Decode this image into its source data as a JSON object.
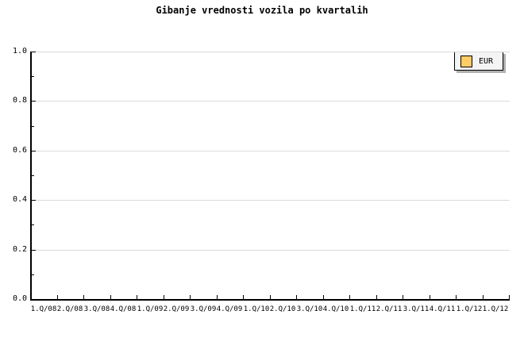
{
  "title": "Gibanje vrednosti vozila po kvartalih",
  "legend": {
    "position": "top-right",
    "items": [
      {
        "label": "EUR",
        "color": "#FFCC66"
      }
    ]
  },
  "colors": {
    "background": "#FFFFFF",
    "text": "#000000",
    "axis": "#000000",
    "grid": "#DADADA",
    "legend_bg": "#F4F4F4",
    "legend_shadow": "#B0B0B0",
    "series_eur": "#FFCC66"
  },
  "chart_data": {
    "type": "line",
    "title": "Gibanje vrednosti vozila po kvartalih",
    "xlabel": "",
    "ylabel": "",
    "categories": [
      "1.Q/08",
      "2.Q/08",
      "3.Q/08",
      "4.Q/08",
      "1.Q/09",
      "2.Q/09",
      "3.Q/09",
      "4.Q/09",
      "1.Q/10",
      "2.Q/10",
      "3.Q/10",
      "4.Q/10",
      "1.Q/11",
      "2.Q/11",
      "3.Q/11",
      "4.Q/11",
      "1.Q/12",
      "1.Q/12"
    ],
    "series": [
      {
        "name": "EUR",
        "color": "#FFCC66",
        "values": []
      }
    ],
    "ylim": [
      0.0,
      1.0
    ],
    "yticks": [
      0.0,
      0.2,
      0.4,
      0.6,
      0.8,
      1.0
    ],
    "ytick_labels": [
      "0.0",
      "0.2",
      "0.4",
      "0.6",
      "0.8",
      "1.0"
    ],
    "y_minor_tick_step": 0.1,
    "grid": true,
    "legend_position": "top-right"
  }
}
